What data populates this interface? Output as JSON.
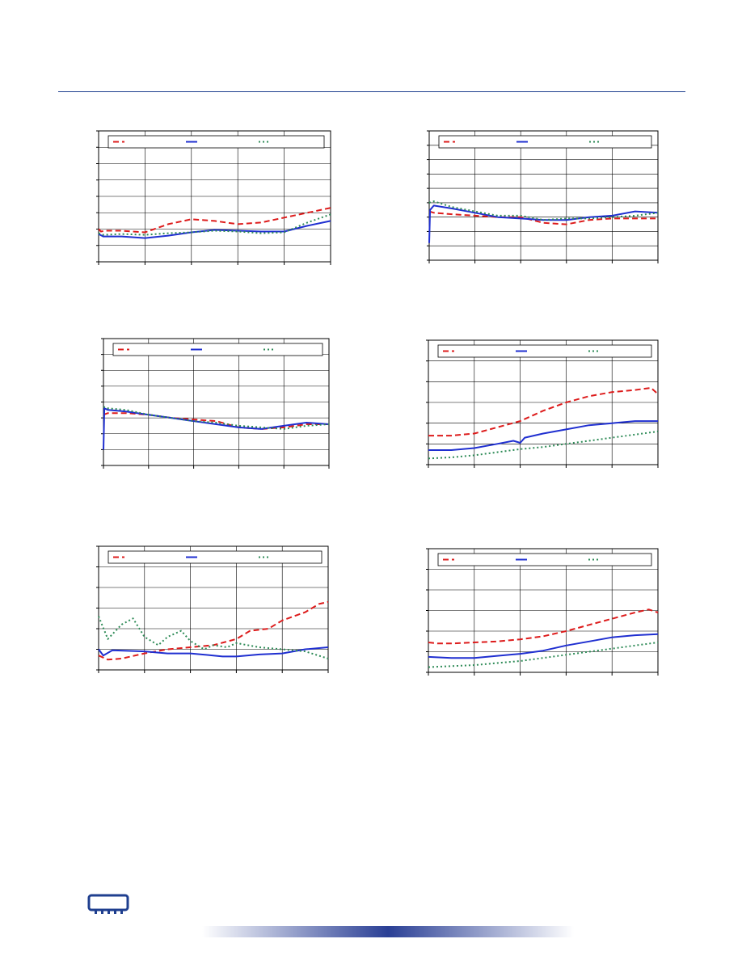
{
  "colors": {
    "accent": "#1f3f8f",
    "grid": "#000000",
    "series_red": "#dd1c1c",
    "series_blue": "#1f2fd0",
    "series_green": "#2e8b57"
  },
  "footer": {
    "logo_icon": "memory-chip-icon"
  },
  "chart_data": [
    {
      "type": "line",
      "grid": true,
      "legend": "top",
      "xlim": [
        0,
        5
      ],
      "ylim": [
        0,
        8
      ],
      "series": [
        {
          "style": "dashed",
          "color": "#dd1c1c",
          "x": [
            0,
            0.05,
            0.15,
            0.5,
            1,
            1.5,
            2,
            2.5,
            3,
            3.5,
            4,
            4.5,
            5
          ],
          "y": [
            2.0,
            1.85,
            1.9,
            1.9,
            1.8,
            2.3,
            2.6,
            2.5,
            2.3,
            2.4,
            2.7,
            3.0,
            3.3
          ]
        },
        {
          "style": "solid",
          "color": "#1f2fd0",
          "x": [
            0,
            0.1,
            0.5,
            1,
            1.5,
            2,
            2.5,
            3,
            3.5,
            4,
            4.5,
            5
          ],
          "y": [
            1.7,
            1.55,
            1.55,
            1.45,
            1.6,
            1.8,
            1.95,
            1.9,
            1.85,
            1.85,
            2.2,
            2.5
          ]
        },
        {
          "style": "dotted",
          "color": "#2e8b57",
          "x": [
            0,
            0.1,
            0.5,
            1,
            1.5,
            2,
            2.5,
            3,
            3.5,
            4,
            4.5,
            5
          ],
          "y": [
            1.75,
            1.65,
            1.7,
            1.65,
            1.75,
            1.8,
            1.9,
            1.85,
            1.75,
            1.8,
            2.4,
            2.9
          ]
        }
      ]
    },
    {
      "type": "line",
      "grid": true,
      "legend": "top",
      "xlim": [
        0,
        5
      ],
      "ylim": [
        0,
        9
      ],
      "series": [
        {
          "style": "dashed",
          "color": "#dd1c1c",
          "x": [
            0,
            0.1,
            0.5,
            1,
            1.5,
            2,
            2.5,
            3,
            3.5,
            4,
            4.5,
            5
          ],
          "y": [
            3.4,
            3.3,
            3.2,
            3.1,
            3.0,
            3.0,
            2.6,
            2.5,
            2.8,
            2.9,
            2.9,
            2.9
          ]
        },
        {
          "style": "solid",
          "color": "#1f2fd0",
          "x": [
            0,
            0.02,
            0.1,
            0.5,
            1,
            1.5,
            2,
            2.5,
            3,
            3.5,
            4,
            4.5,
            5
          ],
          "y": [
            1.2,
            3.5,
            3.8,
            3.6,
            3.3,
            3.0,
            2.9,
            2.8,
            2.8,
            3.0,
            3.1,
            3.4,
            3.3
          ]
        },
        {
          "style": "dotted",
          "color": "#2e8b57",
          "x": [
            0,
            0.1,
            0.5,
            1,
            1.5,
            2,
            2.5,
            3,
            3.5,
            4,
            4.5,
            5
          ],
          "y": [
            4.0,
            4.1,
            3.7,
            3.4,
            3.1,
            3.1,
            2.8,
            2.9,
            2.9,
            3.0,
            3.1,
            3.3
          ]
        }
      ]
    },
    {
      "type": "line",
      "grid": true,
      "legend": "top",
      "xlim": [
        0,
        5
      ],
      "ylim": [
        0,
        8
      ],
      "series": [
        {
          "style": "dashed",
          "color": "#dd1c1c",
          "x": [
            0,
            0.1,
            0.5,
            1,
            1.5,
            2,
            2.5,
            3,
            3.5,
            4,
            4.5,
            5
          ],
          "y": [
            3.2,
            3.3,
            3.3,
            3.2,
            3.0,
            2.9,
            2.8,
            2.4,
            2.3,
            2.4,
            2.6,
            2.6
          ]
        },
        {
          "style": "solid",
          "color": "#1f2fd0",
          "x": [
            0,
            0.02,
            0.1,
            0.5,
            1,
            1.5,
            2,
            2.5,
            3,
            3.5,
            4,
            4.5,
            5
          ],
          "y": [
            1.0,
            3.6,
            3.5,
            3.4,
            3.2,
            3.0,
            2.8,
            2.6,
            2.4,
            2.3,
            2.5,
            2.7,
            2.6
          ]
        },
        {
          "style": "dotted",
          "color": "#2e8b57",
          "x": [
            0,
            0.1,
            0.5,
            1,
            1.5,
            2,
            2.5,
            3,
            3.5,
            4,
            4.5,
            5
          ],
          "y": [
            3.7,
            3.6,
            3.5,
            3.2,
            3.0,
            2.8,
            2.7,
            2.5,
            2.4,
            2.3,
            2.5,
            2.6
          ]
        }
      ]
    },
    {
      "type": "line",
      "grid": true,
      "legend": "top",
      "xlim": [
        0,
        5
      ],
      "ylim": [
        0,
        6
      ],
      "series": [
        {
          "style": "dashed",
          "color": "#dd1c1c",
          "x": [
            0,
            0.5,
            1,
            1.5,
            2,
            2.5,
            3,
            3.5,
            4,
            4.5,
            4.85,
            5
          ],
          "y": [
            1.4,
            1.4,
            1.5,
            1.8,
            2.1,
            2.6,
            3.0,
            3.3,
            3.5,
            3.6,
            3.7,
            3.4
          ]
        },
        {
          "style": "solid",
          "color": "#1f2fd0",
          "x": [
            0,
            0.5,
            1,
            1.5,
            1.85,
            2.0,
            2.1,
            2.5,
            3,
            3.5,
            4,
            4.5,
            5
          ],
          "y": [
            0.7,
            0.7,
            0.8,
            1.0,
            1.15,
            1.05,
            1.3,
            1.5,
            1.7,
            1.9,
            2.0,
            2.1,
            2.1
          ]
        },
        {
          "style": "dotted",
          "color": "#2e8b57",
          "x": [
            0,
            0.5,
            1,
            1.5,
            2,
            2.5,
            3,
            3.5,
            4,
            4.5,
            5
          ],
          "y": [
            0.3,
            0.35,
            0.45,
            0.6,
            0.75,
            0.85,
            1.0,
            1.15,
            1.3,
            1.45,
            1.6
          ]
        }
      ]
    },
    {
      "type": "line",
      "grid": true,
      "legend": "top",
      "xlim": [
        0,
        5
      ],
      "ylim": [
        0,
        6
      ],
      "series": [
        {
          "style": "dashed",
          "color": "#dd1c1c",
          "x": [
            0,
            0.2,
            0.5,
            1,
            1.5,
            2,
            2.5,
            3,
            3.3,
            3.7,
            4,
            4.5,
            4.8,
            5
          ],
          "y": [
            0.7,
            0.5,
            0.55,
            0.8,
            1.0,
            1.1,
            1.2,
            1.5,
            1.9,
            2.0,
            2.4,
            2.8,
            3.2,
            3.3
          ]
        },
        {
          "style": "solid",
          "color": "#1f2fd0",
          "x": [
            0,
            0.1,
            0.3,
            1,
            1.5,
            2,
            2.5,
            2.7,
            3,
            3.5,
            4,
            4.5,
            5
          ],
          "y": [
            1.0,
            0.7,
            0.95,
            0.9,
            0.8,
            0.8,
            0.7,
            0.65,
            0.65,
            0.75,
            0.8,
            1.0,
            1.1
          ]
        },
        {
          "style": "dotted",
          "color": "#2e8b57",
          "x": [
            0,
            0.2,
            0.5,
            0.75,
            1,
            1.3,
            1.5,
            1.8,
            2,
            2.3,
            2.5,
            2.8,
            3,
            3.5,
            4,
            4.5,
            5
          ],
          "y": [
            2.6,
            1.5,
            2.2,
            2.5,
            1.6,
            1.2,
            1.6,
            1.9,
            1.4,
            1.0,
            1.2,
            1.1,
            1.3,
            1.1,
            1.0,
            0.9,
            0.55
          ]
        }
      ]
    },
    {
      "type": "line",
      "grid": true,
      "legend": "top",
      "xlim": [
        0,
        5
      ],
      "ylim": [
        0,
        6
      ],
      "series": [
        {
          "style": "dashed",
          "color": "#dd1c1c",
          "x": [
            0,
            0.2,
            0.5,
            1,
            1.5,
            2,
            2.5,
            3,
            3.5,
            4,
            4.5,
            4.8,
            5
          ],
          "y": [
            1.45,
            1.4,
            1.4,
            1.45,
            1.5,
            1.6,
            1.75,
            2.0,
            2.3,
            2.6,
            2.9,
            3.05,
            2.9
          ]
        },
        {
          "style": "solid",
          "color": "#1f2fd0",
          "x": [
            0,
            0.5,
            1,
            1.5,
            2,
            2.5,
            3,
            3.5,
            4,
            4.5,
            5
          ],
          "y": [
            0.75,
            0.7,
            0.7,
            0.8,
            0.9,
            1.05,
            1.3,
            1.5,
            1.7,
            1.8,
            1.85
          ]
        },
        {
          "style": "dotted",
          "color": "#2e8b57",
          "x": [
            0,
            0.5,
            1,
            1.5,
            2,
            2.5,
            3,
            3.5,
            4,
            4.5,
            5
          ],
          "y": [
            0.25,
            0.3,
            0.35,
            0.45,
            0.55,
            0.7,
            0.85,
            1.0,
            1.15,
            1.3,
            1.45
          ]
        }
      ]
    }
  ]
}
